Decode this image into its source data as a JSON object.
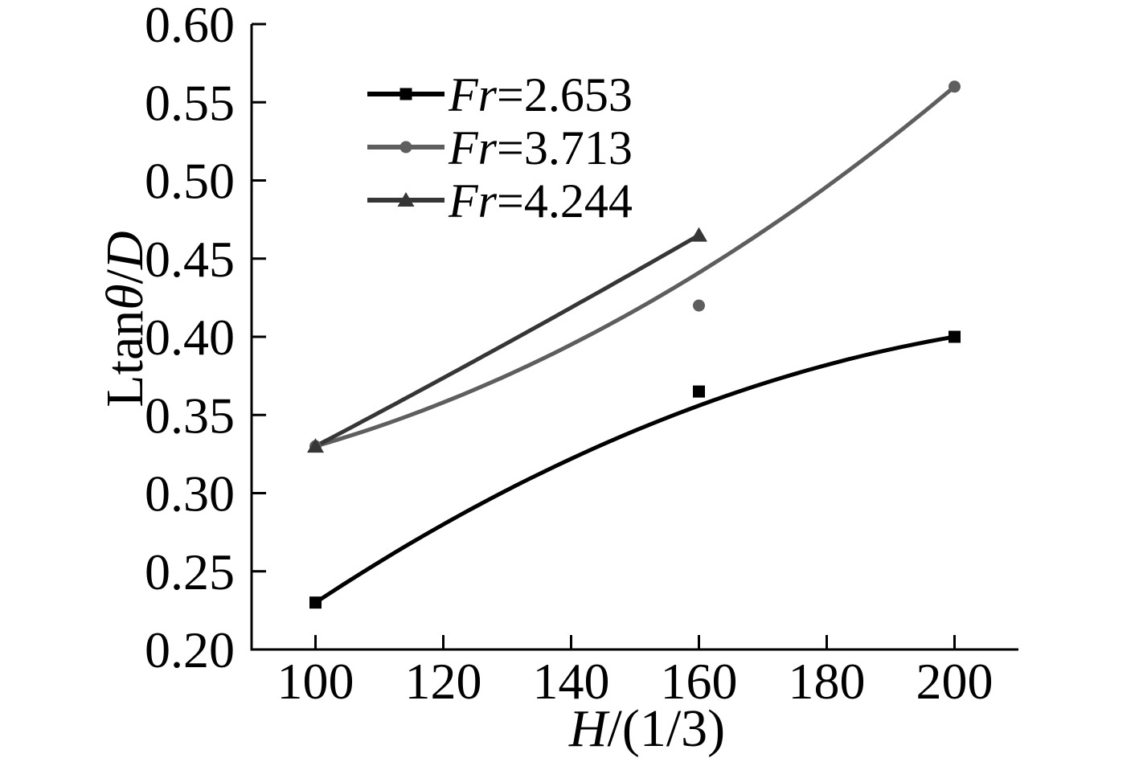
{
  "chart_data": {
    "type": "line",
    "title": "",
    "xlabel": "H/(1/3)",
    "xlabel_parts": [
      {
        "text": "H",
        "italic": true
      },
      {
        "text": "/(1/3)",
        "italic": false
      }
    ],
    "ylabel": "Ltanθ/D",
    "ylabel_parts": [
      {
        "text": "Ltan",
        "italic": false
      },
      {
        "text": "θ",
        "italic": true
      },
      {
        "text": "/",
        "italic": false
      },
      {
        "text": "D",
        "italic": true
      }
    ],
    "xlim": [
      90,
      210
    ],
    "ylim": [
      0.2,
      0.6
    ],
    "x_ticks": [
      100,
      120,
      140,
      160,
      180,
      200
    ],
    "x_tick_labels": [
      "100",
      "120",
      "140",
      "160",
      "180",
      "200"
    ],
    "y_ticks": [
      0.2,
      0.25,
      0.3,
      0.35,
      0.4,
      0.45,
      0.5,
      0.55,
      0.6
    ],
    "y_tick_labels": [
      "0.20",
      "0.25",
      "0.30",
      "0.35",
      "0.40",
      "0.45",
      "0.50",
      "0.55",
      "0.60"
    ],
    "grid": false,
    "axis_color": "#000000",
    "legend": {
      "position": "upper-left-inside",
      "entries": [
        "Fr=2.653",
        "Fr=3.713",
        "Fr=4.244"
      ]
    },
    "series": [
      {
        "name": "Fr=2.653",
        "name_parts": [
          {
            "text": "Fr",
            "italic": true
          },
          {
            "text": "=2.653",
            "italic": false
          }
        ],
        "color": "#000000",
        "marker": "square",
        "points": [
          [
            100,
            0.23
          ],
          [
            160,
            0.365
          ],
          [
            200,
            0.4
          ]
        ],
        "fit_curve": [
          [
            100,
            0.23
          ],
          [
            160,
            0.356
          ],
          [
            200,
            0.4
          ]
        ]
      },
      {
        "name": "Fr=3.713",
        "name_parts": [
          {
            "text": "Fr",
            "italic": true
          },
          {
            "text": "=3.713",
            "italic": false
          }
        ],
        "color": "#5e5e5e",
        "marker": "circle",
        "points": [
          [
            100,
            0.33
          ],
          [
            160,
            0.42
          ],
          [
            200,
            0.56
          ]
        ],
        "fit_curve": [
          [
            100,
            0.33
          ],
          [
            160,
            0.441
          ],
          [
            200,
            0.56
          ]
        ]
      },
      {
        "name": "Fr=4.244",
        "name_parts": [
          {
            "text": "Fr",
            "italic": true
          },
          {
            "text": "=4.244",
            "italic": false
          }
        ],
        "color": "#363636",
        "marker": "triangle",
        "points": [
          [
            100,
            0.33
          ],
          [
            160,
            0.465
          ]
        ],
        "fit_curve": [
          [
            100,
            0.33
          ],
          [
            130,
            0.396
          ],
          [
            160,
            0.465
          ]
        ]
      }
    ]
  }
}
